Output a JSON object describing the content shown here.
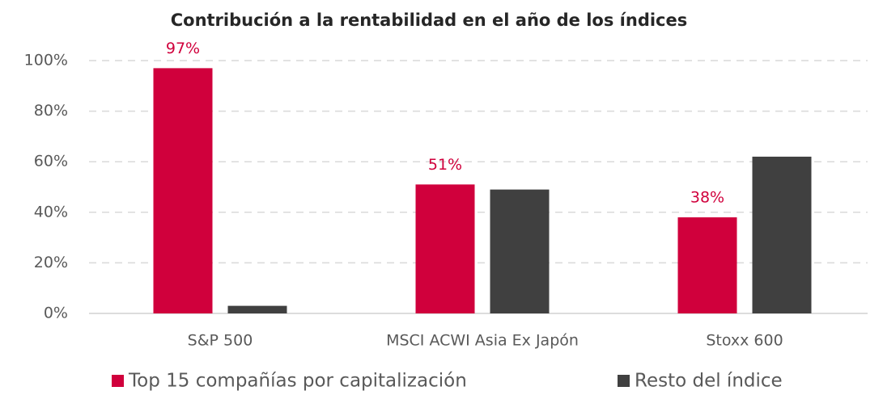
{
  "chart_data": {
    "type": "bar",
    "title": "Contribución a la rentabilidad en el año de los índices",
    "categories": [
      "S&P 500",
      "MSCI ACWI Asia Ex Japón",
      "Stoxx 600"
    ],
    "series": [
      {
        "name": "Top 15 compañías por capitalización",
        "color": "#d0003c",
        "values": [
          97,
          51,
          38
        ],
        "value_labels": [
          "97%",
          "51%",
          "38%"
        ]
      },
      {
        "name": "Resto del índice",
        "color": "#404040",
        "values": [
          3,
          49,
          62
        ]
      }
    ],
    "ylim": [
      0,
      100
    ],
    "yticks": [
      {
        "value": 0,
        "label": "0%"
      },
      {
        "value": 20,
        "label": "20%"
      },
      {
        "value": 40,
        "label": "40%"
      },
      {
        "value": 60,
        "label": "60%"
      },
      {
        "value": 80,
        "label": "80%"
      },
      {
        "value": 100,
        "label": "100%"
      }
    ],
    "grid": true,
    "legend": "bottom"
  }
}
